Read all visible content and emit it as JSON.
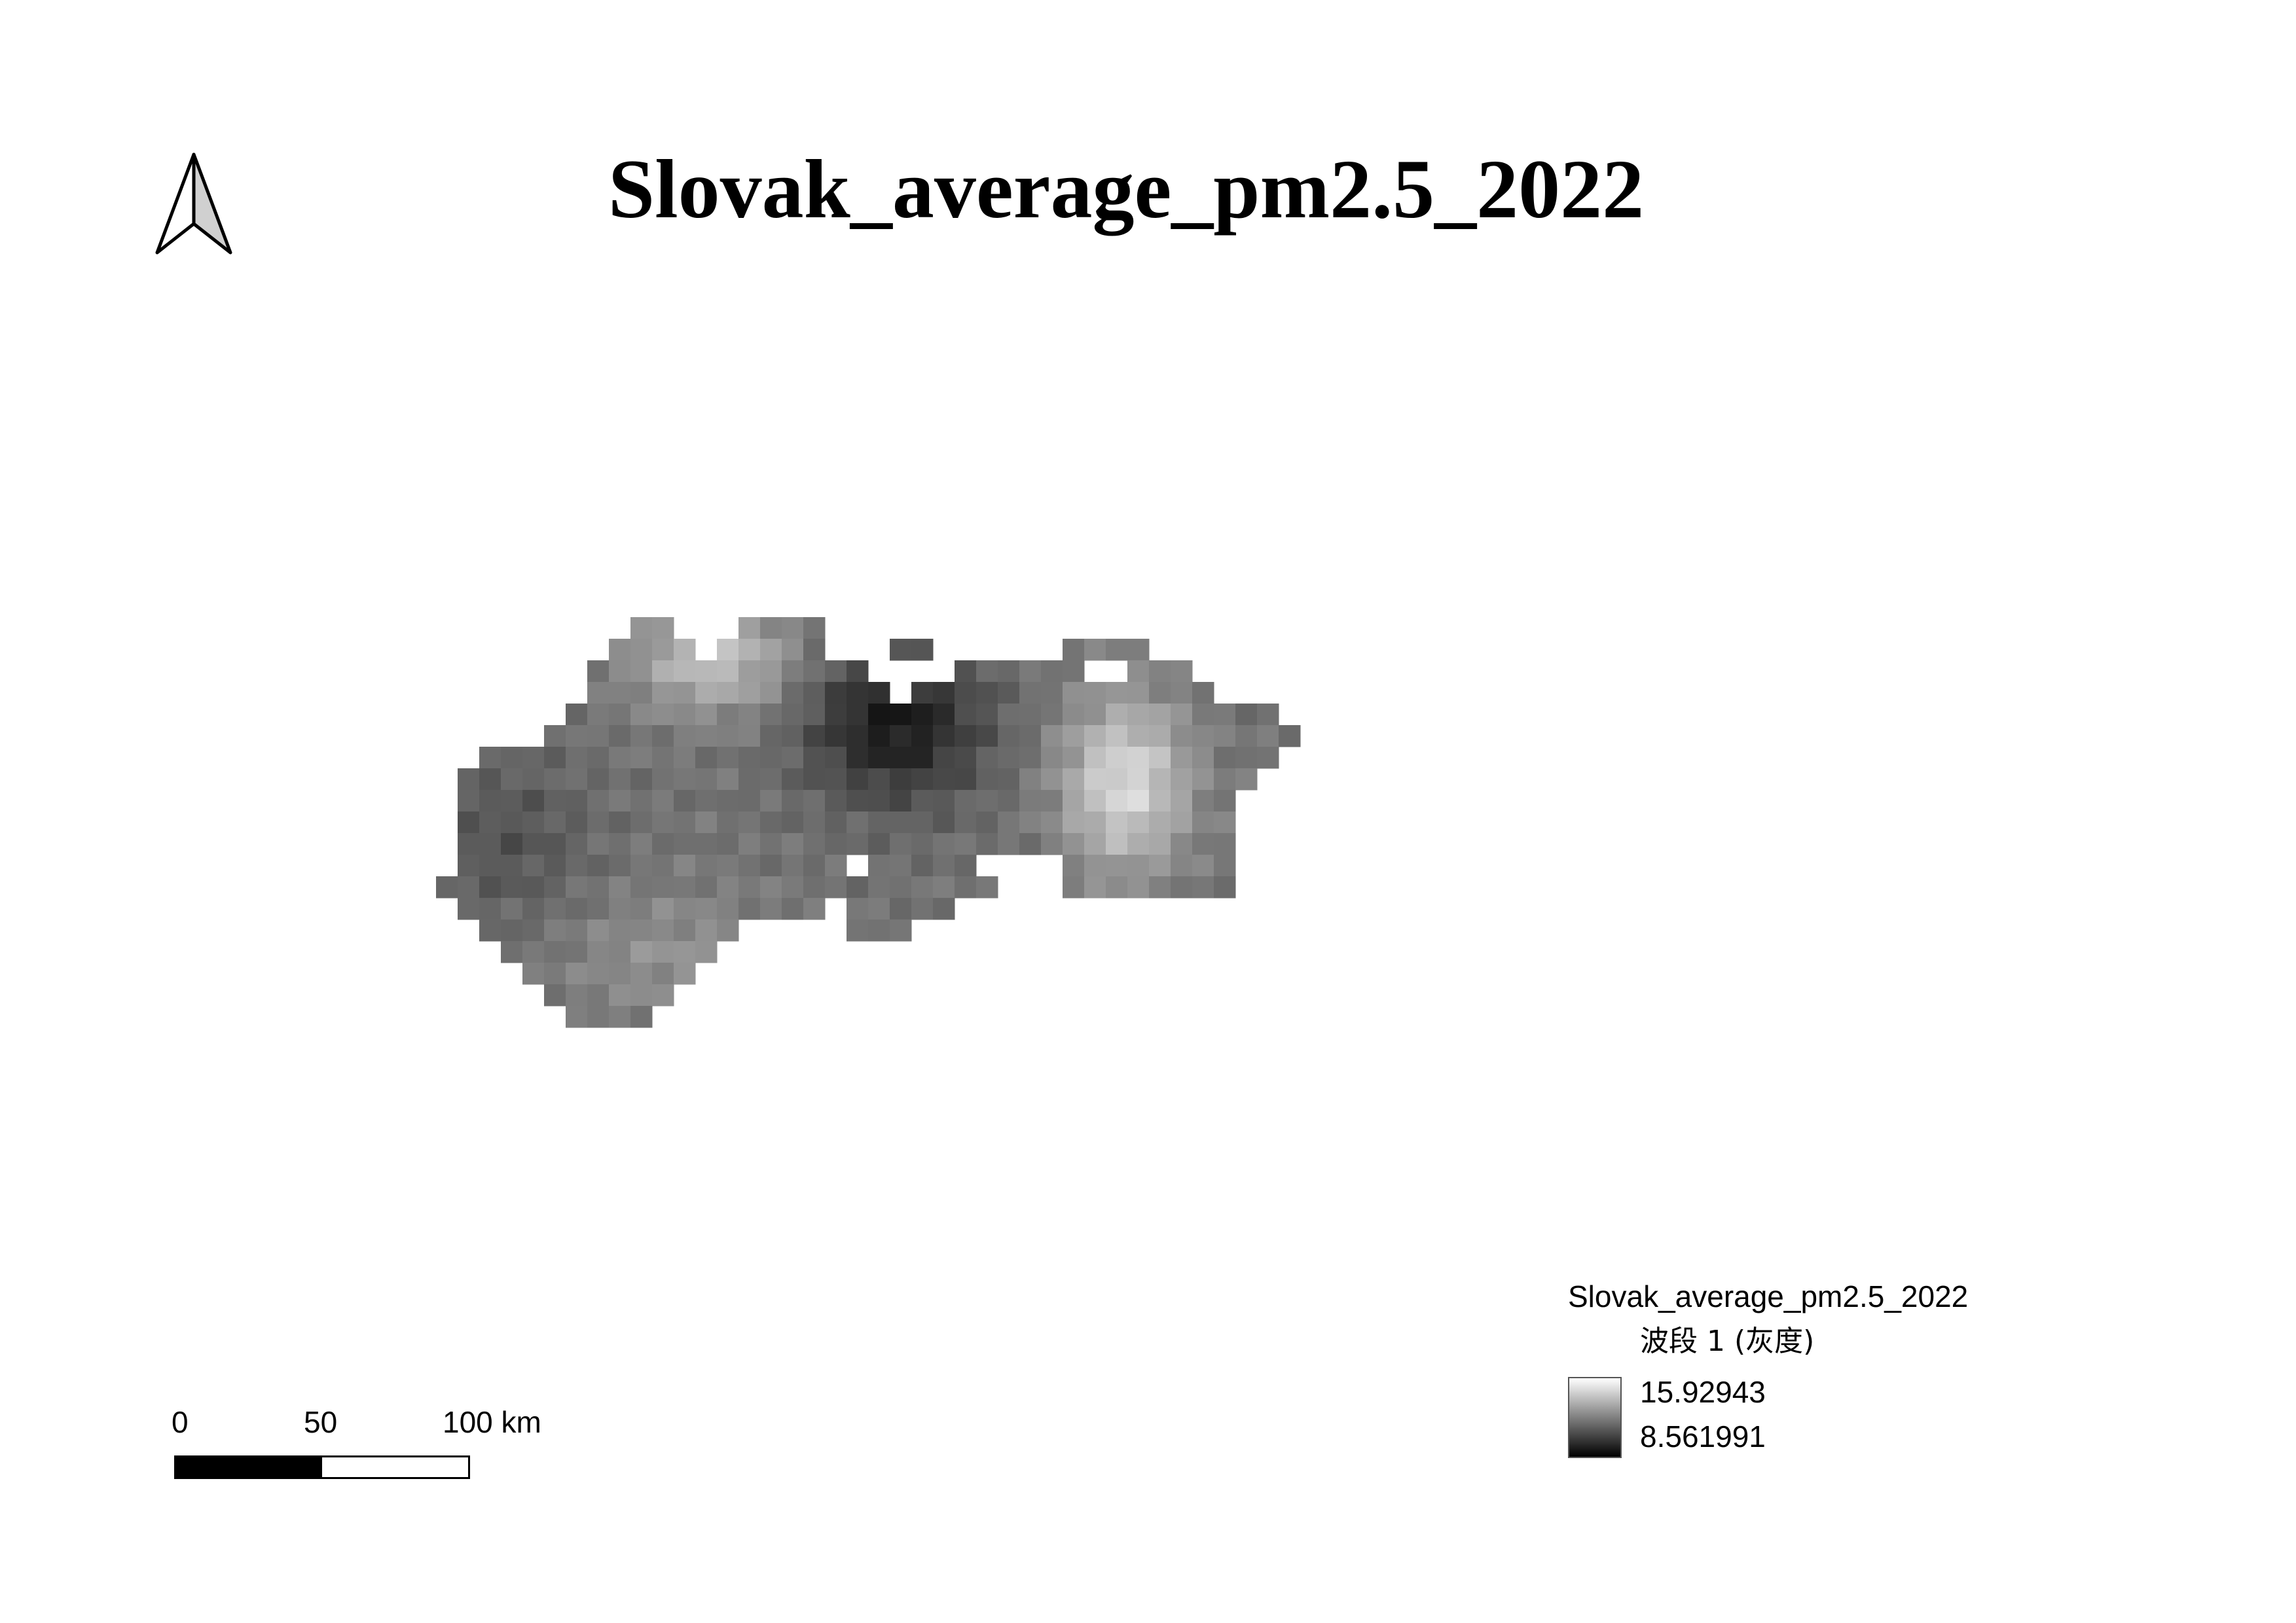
{
  "map": {
    "title": "Slovak_average_pm2.5_2022",
    "north_arrow_icon": "north-arrow-icon",
    "background_color": "#ffffff",
    "raster": {
      "band": "波段 1 (灰度)",
      "min_value": 8.561991,
      "max_value": 15.92943,
      "color_ramp": [
        "#000000",
        "#ffffff"
      ]
    }
  },
  "scalebar": {
    "labels": [
      "0",
      "50",
      "100 km"
    ],
    "colors": [
      "#000000",
      "#ffffff"
    ]
  },
  "legend": {
    "layer_name": "Slovak_average_pm2.5_2022",
    "band_label": "波段 1 (灰度)",
    "max_label": "15.92943",
    "min_label": "8.561991"
  }
}
